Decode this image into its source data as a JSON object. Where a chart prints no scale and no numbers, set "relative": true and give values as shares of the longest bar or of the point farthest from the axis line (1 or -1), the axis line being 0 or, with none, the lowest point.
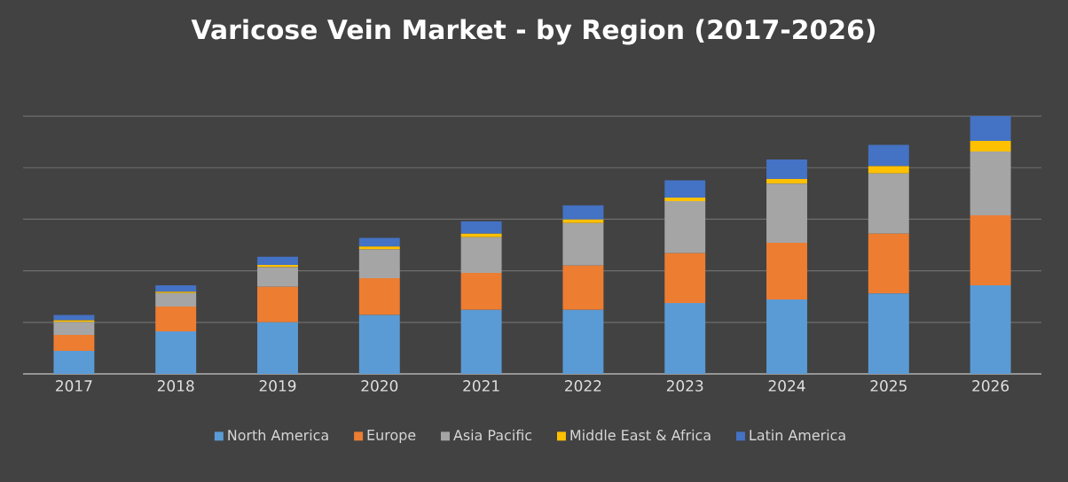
{
  "chart_data": {
    "type": "bar",
    "title": "Varicose Vein Market - by Region (2017-2026)",
    "stacked": true,
    "relative": true,
    "grid": "y",
    "legend": "bottom",
    "categories": [
      "2017",
      "2018",
      "2019",
      "2020",
      "2021",
      "2022",
      "2023",
      "2024",
      "2025",
      "2026"
    ],
    "series": [
      {
        "name": "North America",
        "color": "#5b9bd5",
        "values": [
          0.089,
          0.165,
          0.2,
          0.229,
          0.248,
          0.248,
          0.275,
          0.289,
          0.312,
          0.344
        ]
      },
      {
        "name": "Europe",
        "color": "#ed7d31",
        "values": [
          0.062,
          0.096,
          0.138,
          0.142,
          0.144,
          0.172,
          0.193,
          0.22,
          0.232,
          0.271
        ]
      },
      {
        "name": "Asia Pacific",
        "color": "#a5a5a5",
        "values": [
          0.05,
          0.053,
          0.076,
          0.112,
          0.138,
          0.165,
          0.202,
          0.229,
          0.234,
          0.248
        ]
      },
      {
        "name": "Middle East & Africa",
        "color": "#ffc000",
        "values": [
          0.007,
          0.005,
          0.009,
          0.011,
          0.014,
          0.014,
          0.014,
          0.018,
          0.028,
          0.041
        ]
      },
      {
        "name": "Latin America",
        "color": "#4472c4",
        "values": [
          0.021,
          0.025,
          0.032,
          0.034,
          0.048,
          0.055,
          0.067,
          0.076,
          0.083,
          0.096
        ]
      }
    ]
  }
}
